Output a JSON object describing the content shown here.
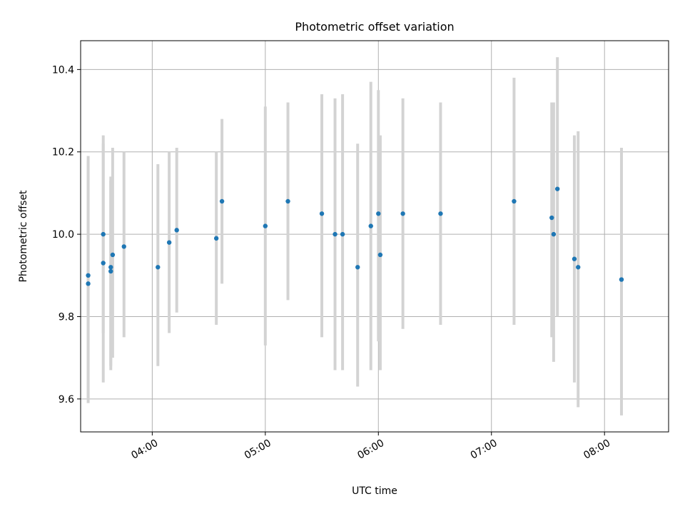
{
  "chart_data": {
    "type": "scatter",
    "title": "Photometric offset variation",
    "xlabel": "UTC time",
    "ylabel": "Photometric offset",
    "xlim": [
      "03:22",
      "08:34"
    ],
    "ylim": [
      9.52,
      10.47
    ],
    "grid": true,
    "x_ticks": [
      "04:00",
      "05:00",
      "06:00",
      "07:00",
      "08:00"
    ],
    "y_ticks": [
      9.6,
      9.8,
      10.0,
      10.2,
      10.4
    ],
    "marker_color": "#1f77b4",
    "errorbar_color": "#d3d3d3",
    "series": [
      {
        "points": [
          {
            "x": "03:26",
            "y": 9.88,
            "lo": 9.6,
            "hi": 10.18
          },
          {
            "x": "03:26",
            "y": 9.9,
            "lo": 9.59,
            "hi": 10.19
          },
          {
            "x": "03:34",
            "y": 10.0,
            "lo": 9.76,
            "hi": 10.24
          },
          {
            "x": "03:34",
            "y": 9.93,
            "lo": 9.64,
            "hi": 10.22
          },
          {
            "x": "03:38",
            "y": 9.91,
            "lo": 9.67,
            "hi": 10.14
          },
          {
            "x": "03:38",
            "y": 9.92,
            "lo": 9.68,
            "hi": 10.13
          },
          {
            "x": "03:39",
            "y": 9.95,
            "lo": 9.7,
            "hi": 10.21
          },
          {
            "x": "03:45",
            "y": 9.97,
            "lo": 9.75,
            "hi": 10.2
          },
          {
            "x": "04:03",
            "y": 9.92,
            "lo": 9.68,
            "hi": 10.17
          },
          {
            "x": "04:09",
            "y": 9.98,
            "lo": 9.76,
            "hi": 10.2
          },
          {
            "x": "04:13",
            "y": 10.01,
            "lo": 9.81,
            "hi": 10.21
          },
          {
            "x": "04:34",
            "y": 9.99,
            "lo": 9.78,
            "hi": 10.2
          },
          {
            "x": "04:37",
            "y": 10.08,
            "lo": 9.88,
            "hi": 10.28
          },
          {
            "x": "05:00",
            "y": 10.02,
            "lo": 9.73,
            "hi": 10.31
          },
          {
            "x": "05:12",
            "y": 10.08,
            "lo": 9.84,
            "hi": 10.32
          },
          {
            "x": "05:30",
            "y": 10.05,
            "lo": 9.75,
            "hi": 10.34
          },
          {
            "x": "05:37",
            "y": 10.0,
            "lo": 9.67,
            "hi": 10.33
          },
          {
            "x": "05:41",
            "y": 10.0,
            "lo": 9.67,
            "hi": 10.34
          },
          {
            "x": "05:49",
            "y": 9.92,
            "lo": 9.63,
            "hi": 10.22
          },
          {
            "x": "05:56",
            "y": 10.02,
            "lo": 9.67,
            "hi": 10.37
          },
          {
            "x": "06:00",
            "y": 10.05,
            "lo": 9.74,
            "hi": 10.35
          },
          {
            "x": "06:01",
            "y": 9.95,
            "lo": 9.67,
            "hi": 10.24
          },
          {
            "x": "06:13",
            "y": 10.05,
            "lo": 9.77,
            "hi": 10.33
          },
          {
            "x": "06:33",
            "y": 10.05,
            "lo": 9.78,
            "hi": 10.32
          },
          {
            "x": "07:12",
            "y": 10.08,
            "lo": 9.78,
            "hi": 10.38
          },
          {
            "x": "07:32",
            "y": 10.04,
            "lo": 9.75,
            "hi": 10.32
          },
          {
            "x": "07:33",
            "y": 10.0,
            "lo": 9.69,
            "hi": 10.32
          },
          {
            "x": "07:35",
            "y": 10.11,
            "lo": 9.8,
            "hi": 10.43
          },
          {
            "x": "07:44",
            "y": 9.94,
            "lo": 9.64,
            "hi": 10.24
          },
          {
            "x": "07:46",
            "y": 9.92,
            "lo": 9.58,
            "hi": 10.25
          },
          {
            "x": "08:09",
            "y": 9.89,
            "lo": 9.56,
            "hi": 10.21
          }
        ]
      }
    ]
  }
}
